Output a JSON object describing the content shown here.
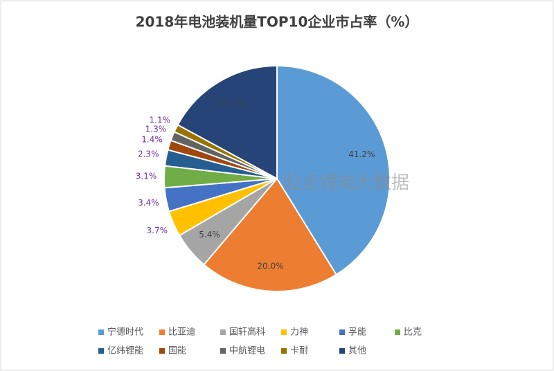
{
  "chart_data": {
    "type": "pie",
    "title": "2018年电池装机量TOP10企业市占率（%）",
    "watermark": "起点锂电大数据",
    "categories": [
      "宁德时代",
      "比亚迪",
      "国轩高科",
      "力神",
      "孚能",
      "比克",
      "亿纬锂能",
      "国能",
      "中航锂电",
      "卡耐",
      "其他"
    ],
    "values": [
      41.2,
      20.0,
      5.4,
      3.7,
      3.4,
      3.1,
      2.3,
      1.4,
      1.3,
      1.1,
      17.1
    ],
    "value_labels": [
      "41.2%",
      "20.0%",
      "5.4%",
      "3.7%",
      "3.4%",
      "3.1%",
      "2.3%",
      "1.4%",
      "1.3%",
      "1.1%",
      "17.1%"
    ],
    "colors": [
      "#5b9bd5",
      "#ed7d31",
      "#a5a5a5",
      "#ffc000",
      "#4472c4",
      "#70ad47",
      "#255e91",
      "#9e480e",
      "#636363",
      "#997300",
      "#264478"
    ],
    "legend": "bottom"
  }
}
